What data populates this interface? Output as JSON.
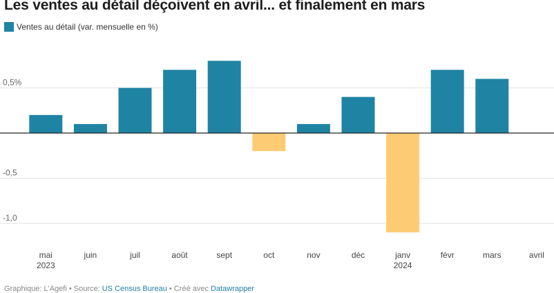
{
  "title": "Les ventes au détail déçoivent en avril... et finalement en mars",
  "legend": {
    "label": "Ventes au détail (var. mensuelle en %)",
    "color": "#1f83a4"
  },
  "colors": {
    "positive": "#1f83a4",
    "negative": "#fecb75"
  },
  "footer": {
    "prefix": "Graphique: L'Agefi • Source: ",
    "source": "US Census Bureau",
    "middle": " • Créé avec ",
    "tool": "Datawrapper"
  },
  "chart_data": {
    "type": "bar",
    "categories": [
      "mai",
      "juin",
      "juil",
      "août",
      "sept",
      "oct",
      "nov",
      "déc",
      "janv",
      "févr",
      "mars",
      "avril"
    ],
    "year_labels": {
      "0": "2023",
      "8": "2024"
    },
    "series": [
      {
        "name": "Ventes au détail (var. mensuelle en %)",
        "values": [
          0.2,
          0.1,
          0.5,
          0.7,
          0.8,
          -0.2,
          0.1,
          0.4,
          -1.1,
          0.7,
          0.6,
          0.0
        ]
      }
    ],
    "ylim": [
      -1.1,
      0.8
    ],
    "yticks": [
      0.5,
      -0.5,
      -1.0
    ],
    "ytick_labels": [
      "0,5%",
      "-0,5",
      "-1,0"
    ],
    "grid": true,
    "legend_position": "top-left"
  }
}
